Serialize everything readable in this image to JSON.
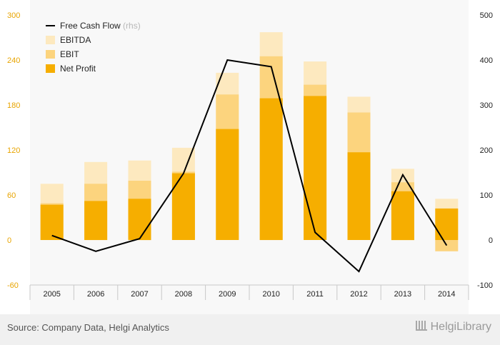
{
  "chart_data": {
    "type": "bar",
    "categories": [
      "2005",
      "2006",
      "2007",
      "2008",
      "2009",
      "2010",
      "2011",
      "2012",
      "2013",
      "2014"
    ],
    "series": [
      {
        "name": "EBITDA",
        "type": "bar",
        "axis": "left",
        "color": "#fde9bf",
        "values": [
          75,
          104,
          106,
          123,
          223,
          277,
          238,
          191,
          95,
          55
        ]
      },
      {
        "name": "EBIT",
        "type": "bar",
        "axis": "left",
        "color": "#fcd47e",
        "values": [
          49,
          75,
          79,
          91,
          194,
          245,
          207,
          170,
          77,
          -15
        ]
      },
      {
        "name": "Net Profit",
        "type": "bar",
        "axis": "left",
        "color": "#f6ae00",
        "values": [
          47,
          52,
          55,
          89,
          148,
          189,
          192,
          117,
          65,
          42
        ]
      },
      {
        "name": "Free Cash Flow",
        "name_suffix": "(rhs)",
        "type": "line",
        "axis": "right",
        "color": "#000000",
        "values": [
          10,
          -25,
          3,
          148,
          400,
          385,
          17,
          -70,
          145,
          -12
        ]
      }
    ],
    "y_left": {
      "min": -60,
      "max": 300,
      "ticks": [
        -60,
        0,
        60,
        120,
        180,
        240,
        300
      ]
    },
    "y_right": {
      "min": -100,
      "max": 500,
      "ticks": [
        -100,
        0,
        100,
        200,
        300,
        400,
        500
      ]
    },
    "legend": "top-left",
    "grid": false,
    "title": "",
    "xlabel": "",
    "ylabel": ""
  },
  "footer": {
    "source": "Source: Company Data, Helgi Analytics",
    "brand": "HelgiLibrary"
  }
}
